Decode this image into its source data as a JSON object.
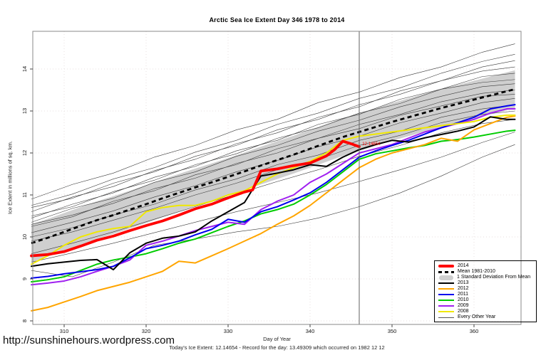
{
  "title": "Arctic Sea Ice Extent Day 346 1978 to 2014",
  "footer": {
    "url": "http://sunshinehours.wordpress.com",
    "xlabel": "Day of Year",
    "caption": "Today's Ice Extent: 12.14654 - Record for the day: 13.49309 which occurred on 1982 12 12"
  },
  "annotation": {
    "text": "12.14654",
    "day": 346.2,
    "value": 12.19,
    "color": "#FF0000"
  },
  "legend": {
    "items": [
      {
        "label": "2014",
        "style": "thick",
        "color": "#FF0000"
      },
      {
        "label": "Mean 1981-2010",
        "style": "dashed",
        "color": "#000000"
      },
      {
        "label": "1 Standard Deviation From Mean",
        "style": "band",
        "color": "#CFCFCF"
      },
      {
        "label": "2013",
        "style": "line",
        "color": "#000000"
      },
      {
        "label": "2012",
        "style": "line",
        "color": "#FFA500"
      },
      {
        "label": "2011",
        "style": "line",
        "color": "#0000EE"
      },
      {
        "label": "2010",
        "style": "line",
        "color": "#00CC00"
      },
      {
        "label": "2009",
        "style": "line",
        "color": "#A020F0"
      },
      {
        "label": "2008",
        "style": "line",
        "color": "#F0E800"
      },
      {
        "label": "Every Other Year",
        "style": "thin",
        "color": "#555555"
      }
    ]
  },
  "chart_data": {
    "type": "line",
    "title": "Arctic Sea Ice Extent Day 346 1978 to 2014",
    "xlabel": "Day of Year",
    "ylabel": "Ice Extent in millions of sq. km.",
    "xlim": [
      306,
      366
    ],
    "ylim": [
      7.9,
      14.9
    ],
    "x_ticks": [
      310,
      320,
      330,
      340,
      350,
      360
    ],
    "y_ticks": [
      8,
      9,
      10,
      11,
      12,
      13,
      14
    ],
    "grid": "dotted",
    "vline_day": 346,
    "band": {
      "name": "1 Standard Deviation From Mean",
      "color": "#CFCFCF",
      "days": [
        306,
        308,
        310,
        312,
        314,
        316,
        318,
        320,
        322,
        324,
        326,
        328,
        330,
        332,
        334,
        336,
        338,
        340,
        342,
        344,
        346,
        348,
        350,
        352,
        354,
        356,
        358,
        360,
        362,
        364,
        365
      ],
      "upper": [
        10.3,
        10.43,
        10.57,
        10.71,
        10.85,
        10.97,
        11.1,
        11.23,
        11.37,
        11.5,
        11.63,
        11.75,
        11.88,
        12.01,
        12.15,
        12.28,
        12.41,
        12.55,
        12.69,
        12.83,
        12.95,
        13.07,
        13.19,
        13.3,
        13.41,
        13.52,
        13.62,
        13.72,
        13.82,
        13.92,
        13.97
      ],
      "lower": [
        9.4,
        9.53,
        9.67,
        9.81,
        9.95,
        10.07,
        10.2,
        10.33,
        10.47,
        10.6,
        10.73,
        10.85,
        10.98,
        11.11,
        11.25,
        11.38,
        11.51,
        11.65,
        11.79,
        11.93,
        12.05,
        12.17,
        12.29,
        12.4,
        12.51,
        12.62,
        12.72,
        12.82,
        12.92,
        13.02,
        13.07
      ]
    },
    "mean": {
      "name": "Mean 1981-2010",
      "color": "#000000",
      "dash": "6 4.5",
      "width": 2.8,
      "days": [
        306,
        308,
        310,
        312,
        314,
        316,
        318,
        320,
        322,
        324,
        326,
        328,
        330,
        332,
        334,
        336,
        338,
        340,
        342,
        344,
        346,
        348,
        350,
        352,
        354,
        356,
        358,
        360,
        362,
        364,
        365
      ],
      "values": [
        9.85,
        9.98,
        10.12,
        10.26,
        10.4,
        10.52,
        10.65,
        10.78,
        10.92,
        11.05,
        11.18,
        11.3,
        11.43,
        11.56,
        11.7,
        11.83,
        11.96,
        12.1,
        12.24,
        12.38,
        12.5,
        12.62,
        12.74,
        12.85,
        12.96,
        13.07,
        13.17,
        13.27,
        13.37,
        13.47,
        13.52
      ]
    },
    "every_other_year": {
      "name": "Every Other Year",
      "color": "#3a3a3a",
      "width": 0.6,
      "days": [
        306,
        311,
        316,
        321,
        326,
        331,
        336,
        341,
        346,
        351,
        356,
        361,
        365
      ],
      "lines": [
        [
          10.9,
          11.25,
          11.52,
          11.9,
          12.18,
          12.55,
          12.8,
          13.2,
          13.45,
          13.8,
          14.05,
          14.4,
          14.6
        ],
        [
          10.75,
          11.02,
          11.38,
          11.65,
          12.02,
          12.3,
          12.68,
          12.95,
          13.3,
          13.55,
          13.9,
          14.18,
          14.35
        ],
        [
          10.6,
          10.95,
          11.2,
          11.58,
          11.85,
          12.22,
          12.48,
          12.85,
          13.1,
          13.48,
          13.72,
          14.05,
          14.2
        ],
        [
          10.7,
          10.92,
          11.28,
          11.55,
          11.92,
          12.18,
          12.55,
          12.8,
          13.15,
          13.4,
          13.72,
          13.95,
          14.05
        ],
        [
          10.45,
          10.78,
          11.05,
          11.42,
          11.68,
          12.05,
          12.3,
          12.68,
          12.92,
          13.28,
          13.52,
          13.82,
          13.9
        ],
        [
          10.5,
          10.72,
          11.08,
          11.35,
          11.72,
          11.98,
          12.35,
          12.6,
          12.95,
          13.18,
          13.52,
          13.68,
          13.75
        ],
        [
          10.35,
          10.68,
          10.92,
          11.3,
          11.55,
          11.92,
          12.18,
          12.52,
          12.78,
          13.1,
          13.35,
          13.58,
          13.65
        ],
        [
          10.25,
          10.48,
          10.85,
          11.1,
          11.48,
          11.72,
          12.1,
          12.35,
          12.68,
          12.92,
          13.22,
          13.42,
          13.5
        ],
        [
          10.3,
          10.52,
          10.8,
          11.15,
          11.4,
          11.75,
          12.0,
          12.35,
          12.58,
          12.9,
          13.12,
          13.35,
          13.4
        ],
        [
          10.1,
          10.35,
          10.62,
          10.95,
          11.22,
          11.55,
          11.82,
          12.15,
          12.4,
          12.72,
          12.95,
          13.2,
          13.3
        ],
        [
          10.0,
          10.22,
          10.52,
          10.78,
          11.12,
          11.38,
          11.72,
          11.95,
          12.3,
          12.52,
          12.85,
          13.05,
          13.15
        ],
        [
          9.9,
          10.12,
          10.4,
          10.68,
          11.0,
          11.28,
          11.6,
          11.85,
          12.18,
          12.42,
          12.72,
          12.92,
          13.0
        ],
        [
          9.6,
          9.85,
          10.12,
          10.42,
          10.72,
          11.02,
          11.32,
          11.6,
          11.92,
          12.18,
          12.48,
          12.7,
          12.8
        ],
        [
          9.4,
          9.62,
          9.85,
          10.1,
          10.35,
          10.6,
          10.82,
          11.05,
          11.32,
          11.6,
          11.9,
          12.25,
          12.5
        ],
        [
          9.2,
          9.05,
          9.4,
          9.8,
          9.95,
          10.12,
          10.25,
          10.45,
          10.72,
          11.05,
          11.45,
          11.9,
          12.2
        ]
      ]
    },
    "series": [
      {
        "name": "2010",
        "color": "#00CC00",
        "width": 2,
        "days": [
          306,
          308,
          310,
          312,
          314,
          316,
          318,
          320,
          322,
          324,
          326,
          328,
          330,
          332,
          334,
          336,
          338,
          340,
          342,
          344,
          346,
          348,
          350,
          352,
          354,
          356,
          358,
          360,
          362,
          364,
          365
        ],
        "values": [
          8.93,
          8.98,
          9.05,
          9.2,
          9.35,
          9.45,
          9.52,
          9.6,
          9.72,
          9.85,
          9.95,
          10.1,
          10.25,
          10.38,
          10.55,
          10.65,
          10.78,
          11.0,
          11.25,
          11.55,
          11.85,
          11.98,
          12.05,
          12.12,
          12.18,
          12.28,
          12.32,
          12.38,
          12.45,
          12.52,
          12.54
        ]
      },
      {
        "name": "2012",
        "color": "#FFA500",
        "width": 2,
        "days": [
          306,
          308,
          310,
          312,
          314,
          316,
          318,
          320,
          322,
          324,
          326,
          328,
          330,
          332,
          334,
          336,
          338,
          340,
          342,
          344,
          346,
          348,
          350,
          352,
          354,
          356,
          358,
          360,
          362,
          364,
          365
        ],
        "values": [
          8.24,
          8.32,
          8.45,
          8.58,
          8.72,
          8.82,
          8.92,
          9.05,
          9.18,
          9.42,
          9.38,
          9.55,
          9.72,
          9.9,
          10.08,
          10.3,
          10.5,
          10.75,
          11.05,
          11.35,
          11.65,
          11.85,
          12.0,
          12.1,
          12.2,
          12.35,
          12.28,
          12.55,
          12.7,
          12.85,
          12.88
        ]
      },
      {
        "name": "2009",
        "color": "#A020F0",
        "width": 2,
        "days": [
          306,
          308,
          310,
          312,
          314,
          316,
          318,
          320,
          322,
          324,
          326,
          328,
          330,
          332,
          334,
          336,
          338,
          340,
          342,
          344,
          346,
          348,
          350,
          352,
          354,
          356,
          358,
          360,
          362,
          364,
          365
        ],
        "values": [
          8.86,
          8.9,
          8.95,
          9.05,
          9.18,
          9.3,
          9.45,
          9.8,
          9.9,
          10.02,
          10.15,
          10.25,
          10.35,
          10.3,
          10.65,
          10.85,
          11.0,
          11.3,
          11.5,
          11.75,
          12.0,
          12.1,
          12.2,
          12.35,
          12.5,
          12.6,
          12.7,
          12.8,
          12.95,
          13.05,
          13.05
        ]
      },
      {
        "name": "2011",
        "color": "#0000EE",
        "width": 2,
        "days": [
          306,
          308,
          310,
          312,
          314,
          316,
          318,
          320,
          322,
          324,
          326,
          328,
          330,
          332,
          334,
          336,
          338,
          340,
          342,
          344,
          346,
          348,
          350,
          352,
          354,
          356,
          358,
          360,
          362,
          364,
          365
        ],
        "values": [
          9.02,
          9.06,
          9.12,
          9.17,
          9.22,
          9.3,
          9.5,
          9.72,
          9.8,
          9.9,
          10.05,
          10.18,
          10.42,
          10.35,
          10.6,
          10.72,
          10.88,
          11.05,
          11.3,
          11.6,
          11.9,
          12.05,
          12.18,
          12.3,
          12.45,
          12.6,
          12.72,
          12.85,
          13.05,
          13.12,
          13.15
        ]
      },
      {
        "name": "2008",
        "color": "#F0E800",
        "width": 2,
        "days": [
          306,
          308,
          310,
          312,
          314,
          316,
          318,
          320,
          322,
          324,
          326,
          328,
          330,
          332,
          334,
          336,
          338,
          340,
          342,
          344,
          346,
          348,
          350,
          352,
          354,
          356,
          358,
          360,
          362,
          364,
          365
        ],
        "values": [
          9.35,
          9.55,
          9.8,
          10.0,
          10.12,
          10.2,
          10.25,
          10.6,
          10.7,
          10.75,
          10.75,
          10.85,
          11.0,
          11.1,
          11.3,
          11.5,
          11.65,
          11.8,
          12.0,
          12.3,
          12.4,
          12.45,
          12.5,
          12.55,
          12.6,
          12.65,
          12.7,
          12.75,
          12.85,
          12.9,
          12.9
        ]
      },
      {
        "name": "2013",
        "color": "#000000",
        "width": 2,
        "days": [
          306,
          308,
          310,
          312,
          314,
          316,
          318,
          320,
          322,
          324,
          326,
          328,
          330,
          332,
          334,
          336,
          338,
          340,
          342,
          344,
          346,
          348,
          350,
          352,
          354,
          356,
          358,
          360,
          362,
          364,
          365
        ],
        "values": [
          9.3,
          9.36,
          9.4,
          9.44,
          9.46,
          9.22,
          9.62,
          9.85,
          9.97,
          10.02,
          10.12,
          10.38,
          10.6,
          10.82,
          11.45,
          11.52,
          11.6,
          11.72,
          11.68,
          11.9,
          12.08,
          12.2,
          12.3,
          12.26,
          12.36,
          12.44,
          12.52,
          12.62,
          12.86,
          12.8,
          12.8
        ]
      },
      {
        "name": "2014",
        "color": "#FF0000",
        "width": 3.8,
        "days": [
          306,
          308,
          310,
          312,
          314,
          316,
          318,
          320,
          322,
          324,
          326,
          328,
          330,
          332,
          333,
          334,
          336,
          338,
          340,
          342,
          343,
          344,
          345,
          346
        ],
        "values": [
          9.55,
          9.58,
          9.65,
          9.78,
          9.92,
          10.02,
          10.15,
          10.27,
          10.38,
          10.52,
          10.67,
          10.78,
          10.93,
          11.07,
          11.12,
          11.57,
          11.62,
          11.7,
          11.76,
          11.93,
          12.08,
          12.28,
          12.22,
          12.15
        ]
      }
    ]
  }
}
